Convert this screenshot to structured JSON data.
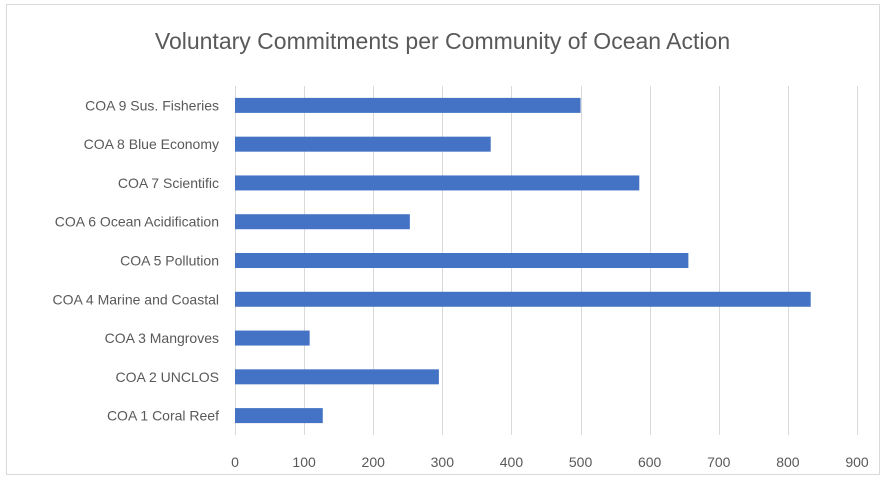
{
  "chart_data": {
    "type": "bar",
    "orientation": "horizontal",
    "title": "Voluntary Commitments per Community of Ocean Action",
    "xlabel": "",
    "ylabel": "",
    "categories": [
      "COA 9 Sus. Fisheries",
      "COA 8 Blue Economy",
      "COA 7 Scientific",
      "COA 6 Ocean Acidification",
      "COA 5 Pollution",
      "COA 4 Marine and Coastal",
      "COA 3 Mangroves",
      "COA 2 UNCLOS",
      "COA 1 Coral Reef"
    ],
    "values": [
      500,
      370,
      585,
      253,
      656,
      833,
      108,
      295,
      127
    ],
    "xlim": [
      0,
      900
    ],
    "xticks": [
      "0",
      "100",
      "200",
      "300",
      "400",
      "500",
      "600",
      "700",
      "800",
      "900"
    ],
    "grid": "vertical",
    "legend": "none",
    "bar_color": "#4472c4",
    "grid_color": "#d9d9d9"
  }
}
